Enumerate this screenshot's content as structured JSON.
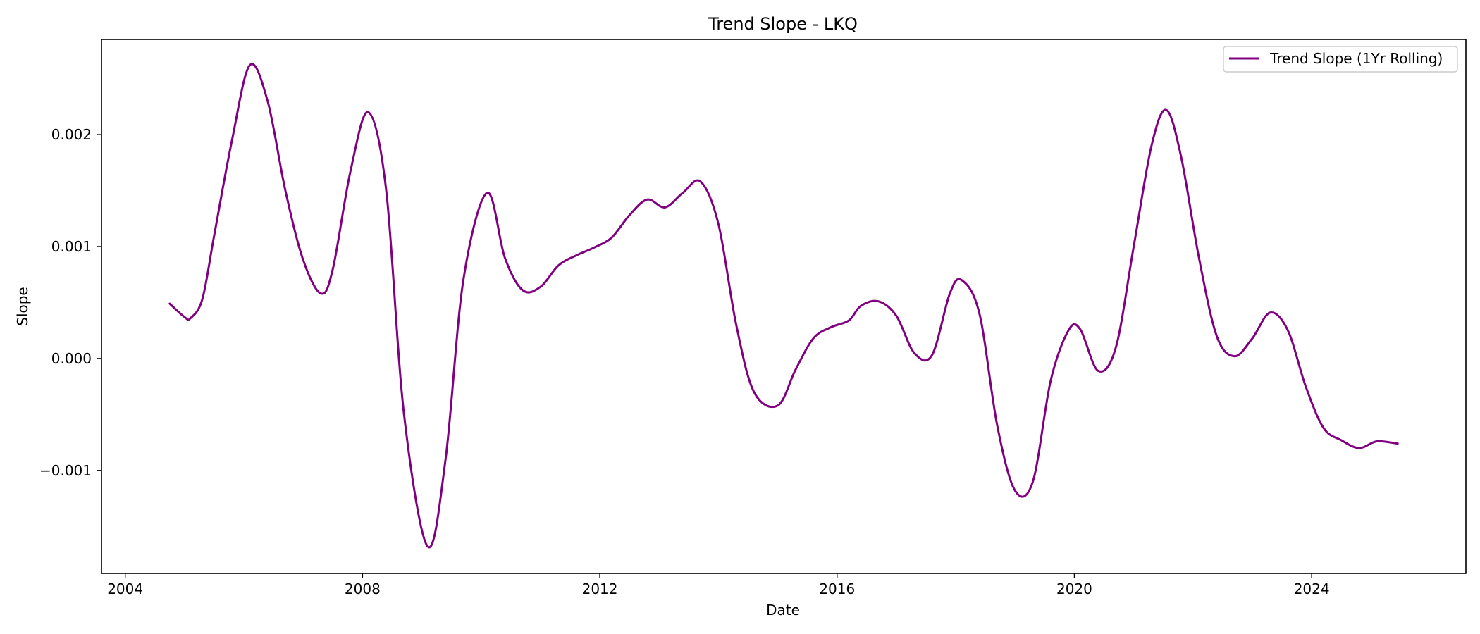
{
  "chart_data": {
    "type": "line",
    "title": "Trend Slope - LKQ",
    "xlabel": "Date",
    "ylabel": "Slope",
    "xlim": [
      2003.6,
      2026.6
    ],
    "ylim": [
      -0.00192,
      0.00285
    ],
    "x_ticks": [
      2004,
      2008,
      2012,
      2016,
      2020,
      2024
    ],
    "y_ticks": [
      {
        "value": -0.001,
        "label": "−0.001"
      },
      {
        "value": 0.0,
        "label": "0.000"
      },
      {
        "value": 0.001,
        "label": "0.001"
      },
      {
        "value": 0.002,
        "label": "0.002"
      }
    ],
    "grid": false,
    "legend_position": "top-right",
    "series": [
      {
        "name": "Trend Slope (1Yr Rolling)",
        "color": "#800080",
        "x": [
          2004.75,
          2005.0,
          2005.1,
          2005.3,
          2005.5,
          2005.8,
          2006.1,
          2006.4,
          2006.7,
          2007.0,
          2007.3,
          2007.5,
          2007.8,
          2008.1,
          2008.4,
          2008.7,
          2009.1,
          2009.4,
          2009.7,
          2010.1,
          2010.4,
          2010.7,
          2011.0,
          2011.3,
          2011.6,
          2011.9,
          2012.2,
          2012.5,
          2012.8,
          2013.1,
          2013.4,
          2013.7,
          2014.0,
          2014.3,
          2014.6,
          2015.0,
          2015.3,
          2015.6,
          2015.9,
          2016.2,
          2016.4,
          2016.7,
          2017.0,
          2017.3,
          2017.6,
          2017.9,
          2018.1,
          2018.4,
          2018.7,
          2019.0,
          2019.3,
          2019.6,
          2019.9,
          2020.1,
          2020.4,
          2020.7,
          2021.0,
          2021.3,
          2021.55,
          2021.8,
          2022.1,
          2022.4,
          2022.7,
          2023.0,
          2023.3,
          2023.6,
          2023.9,
          2024.2,
          2024.5,
          2024.8,
          2025.1,
          2025.45
        ],
        "y": [
          0.00049,
          0.00037,
          0.00036,
          0.00053,
          0.0011,
          0.00195,
          0.00262,
          0.0023,
          0.0015,
          0.00088,
          0.00058,
          0.0008,
          0.00168,
          0.0022,
          0.0015,
          -0.0005,
          -0.00168,
          -0.0009,
          0.0007,
          0.00148,
          0.0009,
          0.00061,
          0.00064,
          0.00083,
          0.00092,
          0.00099,
          0.00108,
          0.00128,
          0.00142,
          0.00135,
          0.00148,
          0.00158,
          0.0012,
          0.0003,
          -0.0003,
          -0.00042,
          -0.0001,
          0.00018,
          0.00028,
          0.00034,
          0.00047,
          0.00051,
          0.00038,
          5e-05,
          3e-05,
          0.00058,
          0.0007,
          0.0004,
          -0.0006,
          -0.00118,
          -0.0011,
          -0.0002,
          0.00025,
          0.00026,
          -0.00011,
          0.0001,
          0.001,
          0.0019,
          0.00222,
          0.0018,
          0.0009,
          0.0002,
          2e-05,
          0.00018,
          0.00041,
          0.00025,
          -0.00025,
          -0.00062,
          -0.00073,
          -0.0008,
          -0.00074,
          -0.00076
        ]
      }
    ]
  }
}
